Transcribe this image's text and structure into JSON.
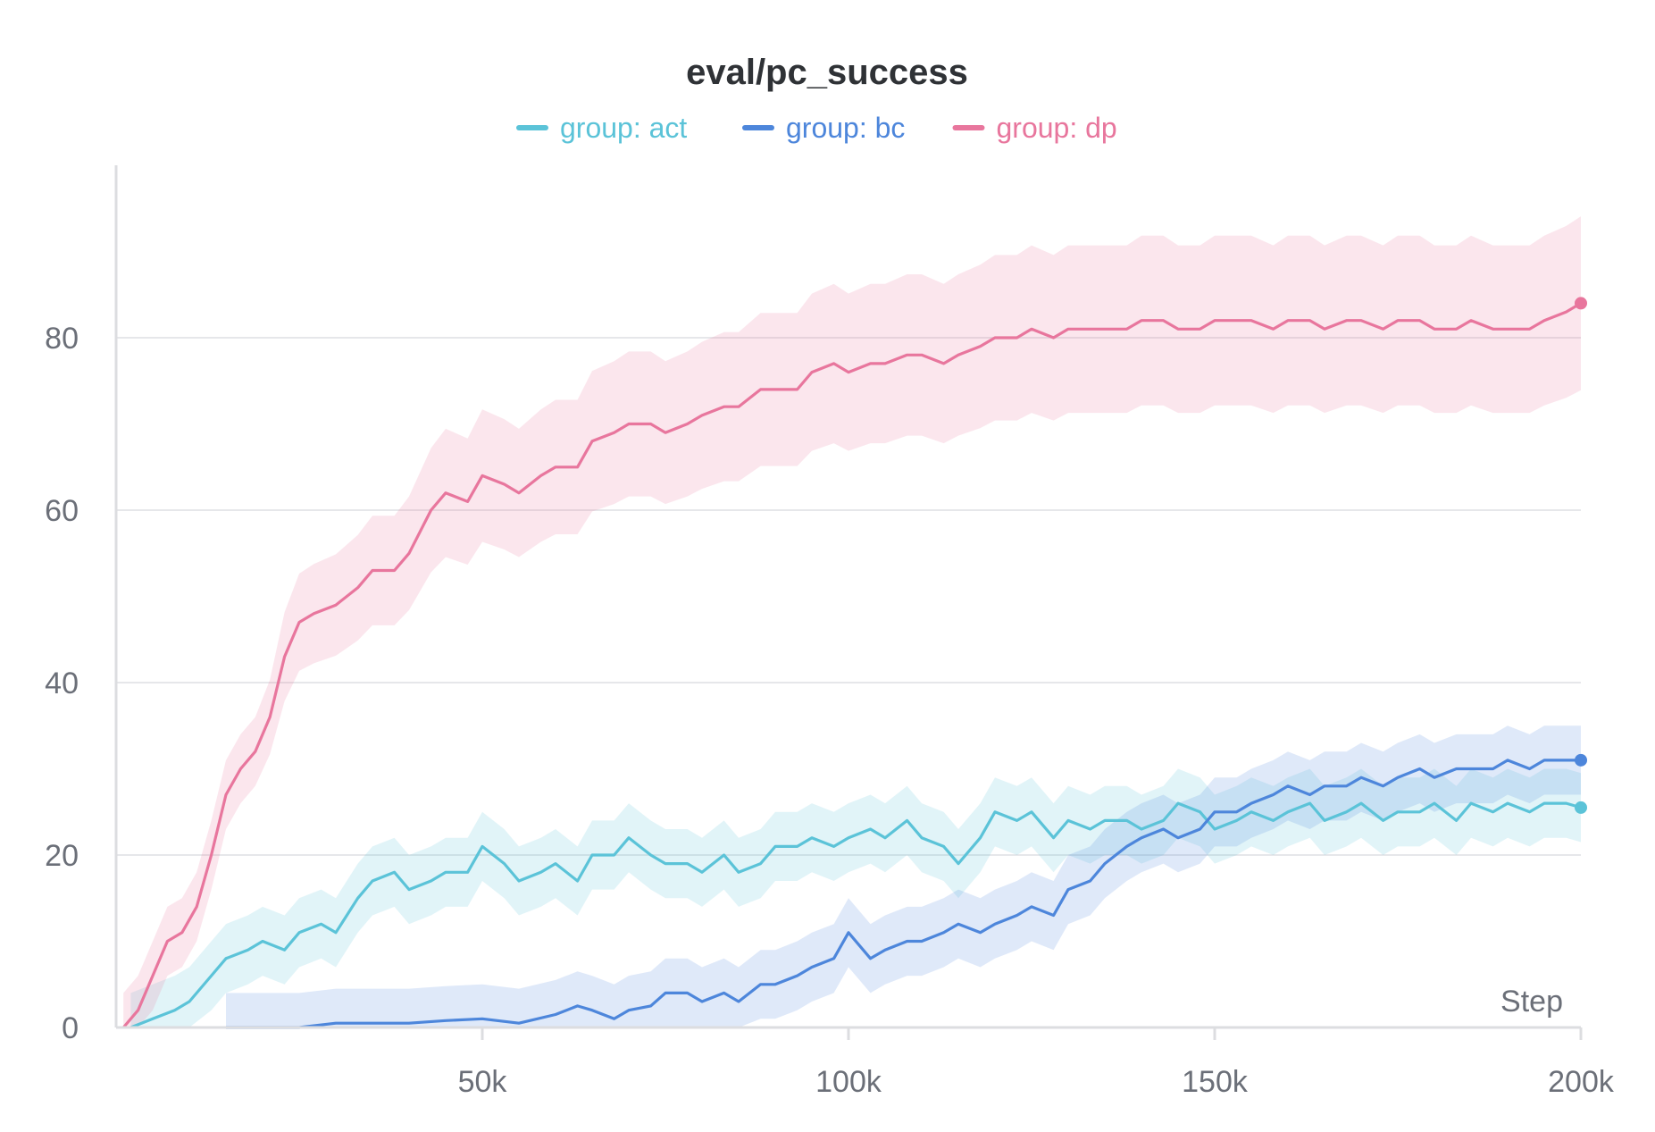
{
  "chart_data": {
    "type": "line",
    "title": "eval/pc_success",
    "xlabel": "Step",
    "ylabel": "",
    "xlim": [
      0,
      200000
    ],
    "ylim": [
      0,
      100
    ],
    "x_ticks": [
      50000,
      100000,
      150000,
      200000
    ],
    "x_tick_labels": [
      "50k",
      "100k",
      "150k",
      "200k"
    ],
    "y_ticks": [
      0,
      20,
      40,
      60,
      80
    ],
    "y_tick_labels": [
      "0",
      "20",
      "40",
      "60",
      "80"
    ],
    "grid": true,
    "legend_position": "top-center",
    "legend_prefix": "group: ",
    "series": [
      {
        "name": "act",
        "color": "#5bc3d8",
        "shaded_band": true,
        "points": [
          [
            2000,
            0
          ],
          [
            5000,
            1
          ],
          [
            8000,
            2
          ],
          [
            10000,
            3
          ],
          [
            13000,
            6
          ],
          [
            15000,
            8
          ],
          [
            18000,
            9
          ],
          [
            20000,
            10
          ],
          [
            23000,
            9
          ],
          [
            25000,
            11
          ],
          [
            28000,
            12
          ],
          [
            30000,
            11
          ],
          [
            33000,
            15
          ],
          [
            35000,
            17
          ],
          [
            38000,
            18
          ],
          [
            40000,
            16
          ],
          [
            43000,
            17
          ],
          [
            45000,
            18
          ],
          [
            48000,
            18
          ],
          [
            50000,
            21
          ],
          [
            53000,
            19
          ],
          [
            55000,
            17
          ],
          [
            58000,
            18
          ],
          [
            60000,
            19
          ],
          [
            63000,
            17
          ],
          [
            65000,
            20
          ],
          [
            68000,
            20
          ],
          [
            70000,
            22
          ],
          [
            73000,
            20
          ],
          [
            75000,
            19
          ],
          [
            78000,
            19
          ],
          [
            80000,
            18
          ],
          [
            83000,
            20
          ],
          [
            85000,
            18
          ],
          [
            88000,
            19
          ],
          [
            90000,
            21
          ],
          [
            93000,
            21
          ],
          [
            95000,
            22
          ],
          [
            98000,
            21
          ],
          [
            100000,
            22
          ],
          [
            103000,
            23
          ],
          [
            105000,
            22
          ],
          [
            108000,
            24
          ],
          [
            110000,
            22
          ],
          [
            113000,
            21
          ],
          [
            115000,
            19
          ],
          [
            118000,
            22
          ],
          [
            120000,
            25
          ],
          [
            123000,
            24
          ],
          [
            125000,
            25
          ],
          [
            128000,
            22
          ],
          [
            130000,
            24
          ],
          [
            133000,
            23
          ],
          [
            135000,
            24
          ],
          [
            138000,
            24
          ],
          [
            140000,
            23
          ],
          [
            143000,
            24
          ],
          [
            145000,
            26
          ],
          [
            148000,
            25
          ],
          [
            150000,
            23
          ],
          [
            153000,
            24
          ],
          [
            155000,
            25
          ],
          [
            158000,
            24
          ],
          [
            160000,
            25
          ],
          [
            163000,
            26
          ],
          [
            165000,
            24
          ],
          [
            168000,
            25
          ],
          [
            170000,
            26
          ],
          [
            173000,
            24
          ],
          [
            175000,
            25
          ],
          [
            178000,
            25
          ],
          [
            180000,
            26
          ],
          [
            183000,
            24
          ],
          [
            185000,
            26
          ],
          [
            188000,
            25
          ],
          [
            190000,
            26
          ],
          [
            193000,
            25
          ],
          [
            195000,
            26
          ],
          [
            198000,
            26
          ],
          [
            200000,
            25.5
          ]
        ]
      },
      {
        "name": "bc",
        "color": "#4d86db",
        "shaded_band": true,
        "points": [
          [
            15000,
            0
          ],
          [
            20000,
            0
          ],
          [
            25000,
            0
          ],
          [
            30000,
            0.5
          ],
          [
            35000,
            0.5
          ],
          [
            40000,
            0.5
          ],
          [
            45000,
            0.8
          ],
          [
            50000,
            1
          ],
          [
            55000,
            0.5
          ],
          [
            60000,
            1.5
          ],
          [
            63000,
            2.5
          ],
          [
            65000,
            2
          ],
          [
            68000,
            1
          ],
          [
            70000,
            2
          ],
          [
            73000,
            2.5
          ],
          [
            75000,
            4
          ],
          [
            78000,
            4
          ],
          [
            80000,
            3
          ],
          [
            83000,
            4
          ],
          [
            85000,
            3
          ],
          [
            88000,
            5
          ],
          [
            90000,
            5
          ],
          [
            93000,
            6
          ],
          [
            95000,
            7
          ],
          [
            98000,
            8
          ],
          [
            100000,
            11
          ],
          [
            103000,
            8
          ],
          [
            105000,
            9
          ],
          [
            108000,
            10
          ],
          [
            110000,
            10
          ],
          [
            113000,
            11
          ],
          [
            115000,
            12
          ],
          [
            118000,
            11
          ],
          [
            120000,
            12
          ],
          [
            123000,
            13
          ],
          [
            125000,
            14
          ],
          [
            128000,
            13
          ],
          [
            130000,
            16
          ],
          [
            133000,
            17
          ],
          [
            135000,
            19
          ],
          [
            138000,
            21
          ],
          [
            140000,
            22
          ],
          [
            143000,
            23
          ],
          [
            145000,
            22
          ],
          [
            148000,
            23
          ],
          [
            150000,
            25
          ],
          [
            153000,
            25
          ],
          [
            155000,
            26
          ],
          [
            158000,
            27
          ],
          [
            160000,
            28
          ],
          [
            163000,
            27
          ],
          [
            165000,
            28
          ],
          [
            168000,
            28
          ],
          [
            170000,
            29
          ],
          [
            173000,
            28
          ],
          [
            175000,
            29
          ],
          [
            178000,
            30
          ],
          [
            180000,
            29
          ],
          [
            183000,
            30
          ],
          [
            185000,
            30
          ],
          [
            188000,
            30
          ],
          [
            190000,
            31
          ],
          [
            193000,
            30
          ],
          [
            195000,
            31
          ],
          [
            198000,
            31
          ],
          [
            200000,
            31
          ]
        ]
      },
      {
        "name": "dp",
        "color": "#e8769d",
        "shaded_band": true,
        "points": [
          [
            1000,
            0
          ],
          [
            3000,
            2
          ],
          [
            5000,
            6
          ],
          [
            7000,
            10
          ],
          [
            9000,
            11
          ],
          [
            11000,
            14
          ],
          [
            13000,
            20
          ],
          [
            15000,
            27
          ],
          [
            17000,
            30
          ],
          [
            19000,
            32
          ],
          [
            21000,
            36
          ],
          [
            23000,
            43
          ],
          [
            25000,
            47
          ],
          [
            27000,
            48
          ],
          [
            30000,
            49
          ],
          [
            33000,
            51
          ],
          [
            35000,
            53
          ],
          [
            38000,
            53
          ],
          [
            40000,
            55
          ],
          [
            43000,
            60
          ],
          [
            45000,
            62
          ],
          [
            48000,
            61
          ],
          [
            50000,
            64
          ],
          [
            53000,
            63
          ],
          [
            55000,
            62
          ],
          [
            58000,
            64
          ],
          [
            60000,
            65
          ],
          [
            63000,
            65
          ],
          [
            65000,
            68
          ],
          [
            68000,
            69
          ],
          [
            70000,
            70
          ],
          [
            73000,
            70
          ],
          [
            75000,
            69
          ],
          [
            78000,
            70
          ],
          [
            80000,
            71
          ],
          [
            83000,
            72
          ],
          [
            85000,
            72
          ],
          [
            88000,
            74
          ],
          [
            90000,
            74
          ],
          [
            93000,
            74
          ],
          [
            95000,
            76
          ],
          [
            98000,
            77
          ],
          [
            100000,
            76
          ],
          [
            103000,
            77
          ],
          [
            105000,
            77
          ],
          [
            108000,
            78
          ],
          [
            110000,
            78
          ],
          [
            113000,
            77
          ],
          [
            115000,
            78
          ],
          [
            118000,
            79
          ],
          [
            120000,
            80
          ],
          [
            123000,
            80
          ],
          [
            125000,
            81
          ],
          [
            128000,
            80
          ],
          [
            130000,
            81
          ],
          [
            133000,
            81
          ],
          [
            135000,
            81
          ],
          [
            138000,
            81
          ],
          [
            140000,
            82
          ],
          [
            143000,
            82
          ],
          [
            145000,
            81
          ],
          [
            148000,
            81
          ],
          [
            150000,
            82
          ],
          [
            153000,
            82
          ],
          [
            155000,
            82
          ],
          [
            158000,
            81
          ],
          [
            160000,
            82
          ],
          [
            163000,
            82
          ],
          [
            165000,
            81
          ],
          [
            168000,
            82
          ],
          [
            170000,
            82
          ],
          [
            173000,
            81
          ],
          [
            175000,
            82
          ],
          [
            178000,
            82
          ],
          [
            180000,
            81
          ],
          [
            183000,
            81
          ],
          [
            185000,
            82
          ],
          [
            188000,
            81
          ],
          [
            190000,
            81
          ],
          [
            193000,
            81
          ],
          [
            195000,
            82
          ],
          [
            198000,
            83
          ],
          [
            200000,
            84
          ]
        ]
      }
    ]
  }
}
